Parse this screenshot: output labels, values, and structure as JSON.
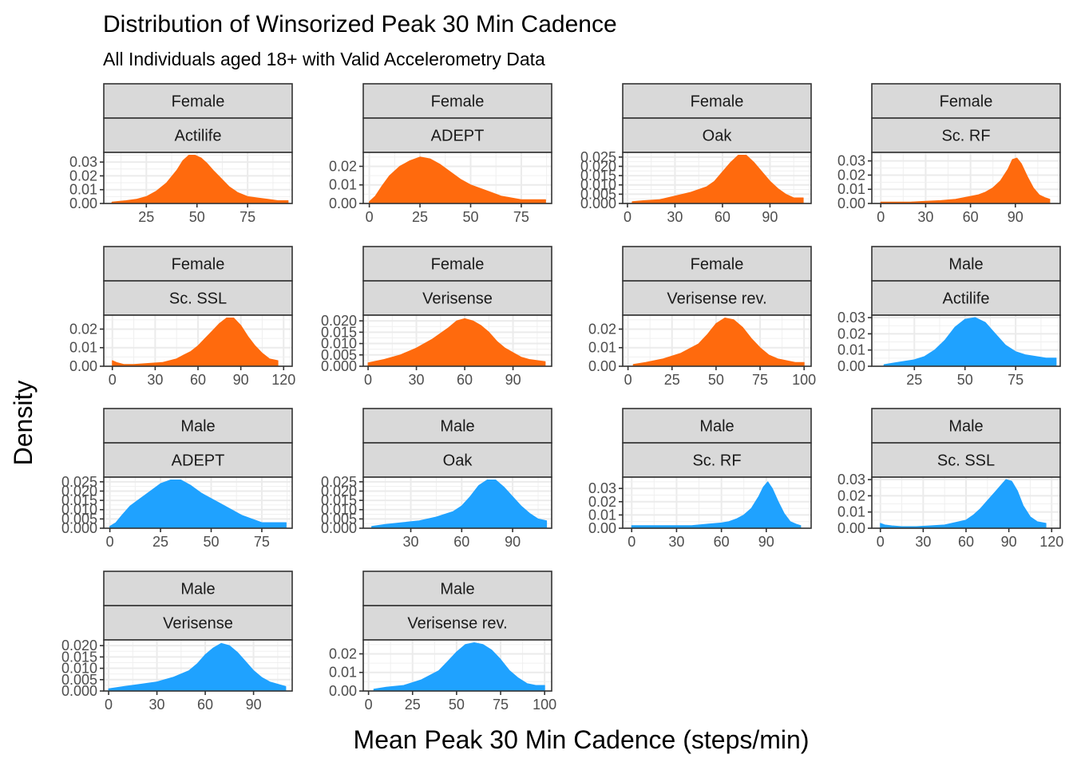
{
  "chart_data": {
    "type": "area",
    "title": "Distribution of Winsorized Peak 30 Min Cadence",
    "subtitle": "All Individuals aged 18+ with Valid Accelerometry Data",
    "xlabel": "Mean Peak 30 Min Cadence (steps/min)",
    "ylabel": "Density",
    "grid": true,
    "legend": "none",
    "colors": {
      "Female": "#FF6A0D",
      "Male": "#1FA2FF"
    },
    "panels": [
      {
        "sex": "Female",
        "method": "Actilife",
        "xlim": [
          4,
          97
        ],
        "ylim": [
          0,
          0.037
        ],
        "xticks": [
          25,
          50,
          75
        ],
        "yticks": [
          0.0,
          0.01,
          0.02,
          0.03
        ],
        "ytick_labels": [
          "0.00",
          "0.01",
          "0.02",
          "0.03"
        ],
        "x": [
          8,
          15,
          20,
          25,
          30,
          35,
          40,
          43,
          46,
          49,
          52,
          55,
          58,
          62,
          66,
          70,
          75,
          80,
          85,
          90,
          95
        ],
        "y": [
          0.001,
          0.002,
          0.003,
          0.005,
          0.009,
          0.015,
          0.024,
          0.031,
          0.035,
          0.035,
          0.033,
          0.029,
          0.024,
          0.018,
          0.012,
          0.008,
          0.005,
          0.004,
          0.003,
          0.002,
          0.002
        ]
      },
      {
        "sex": "Female",
        "method": "ADEPT",
        "xlim": [
          -3,
          90
        ],
        "ylim": [
          0,
          0.0275
        ],
        "xticks": [
          0,
          25,
          50,
          75
        ],
        "yticks": [
          0.0,
          0.01,
          0.02
        ],
        "ytick_labels": [
          "0.00",
          "0.01",
          "0.02"
        ],
        "x": [
          0,
          3,
          6,
          10,
          15,
          20,
          25,
          30,
          35,
          40,
          45,
          50,
          55,
          60,
          65,
          70,
          75,
          80,
          87
        ],
        "y": [
          0.001,
          0.004,
          0.009,
          0.015,
          0.02,
          0.023,
          0.025,
          0.024,
          0.021,
          0.017,
          0.013,
          0.01,
          0.008,
          0.006,
          0.004,
          0.003,
          0.002,
          0.002,
          0.002
        ]
      },
      {
        "sex": "Female",
        "method": "Oak",
        "xlim": [
          -3,
          116
        ],
        "ylim": [
          0,
          0.0275
        ],
        "xticks": [
          0,
          30,
          60,
          90
        ],
        "yticks": [
          0.0,
          0.005,
          0.01,
          0.015,
          0.02,
          0.025
        ],
        "ytick_labels": [
          "0.000",
          "0.005",
          "0.010",
          "0.015",
          "0.020",
          "0.025"
        ],
        "x": [
          3,
          10,
          20,
          30,
          40,
          50,
          55,
          60,
          65,
          70,
          75,
          80,
          85,
          90,
          95,
          100,
          105,
          111
        ],
        "y": [
          0.001,
          0.0015,
          0.002,
          0.004,
          0.006,
          0.009,
          0.012,
          0.017,
          0.022,
          0.026,
          0.026,
          0.022,
          0.017,
          0.012,
          0.008,
          0.005,
          0.003,
          0.003
        ]
      },
      {
        "sex": "Female",
        "method": "Sc. RF",
        "xlim": [
          -6,
          120
        ],
        "ylim": [
          0,
          0.036
        ],
        "xticks": [
          0,
          30,
          60,
          90
        ],
        "yticks": [
          0.0,
          0.01,
          0.02,
          0.03
        ],
        "ytick_labels": [
          "0.00",
          "0.01",
          "0.02",
          "0.03"
        ],
        "x": [
          0,
          10,
          20,
          30,
          40,
          50,
          60,
          65,
          70,
          75,
          80,
          85,
          88,
          91,
          94,
          98,
          102,
          106,
          110,
          113
        ],
        "y": [
          0.001,
          0.001,
          0.001,
          0.0015,
          0.002,
          0.003,
          0.005,
          0.006,
          0.008,
          0.011,
          0.016,
          0.024,
          0.031,
          0.032,
          0.028,
          0.019,
          0.011,
          0.006,
          0.004,
          0.003
        ]
      },
      {
        "sex": "Female",
        "method": "Sc. SSL",
        "xlim": [
          -6,
          126
        ],
        "ylim": [
          0,
          0.0275
        ],
        "xticks": [
          0,
          30,
          60,
          90,
          120
        ],
        "yticks": [
          0.0,
          0.01,
          0.02
        ],
        "ytick_labels": [
          "0.00",
          "0.01",
          "0.02"
        ],
        "x": [
          0,
          3,
          8,
          15,
          25,
          35,
          45,
          50,
          55,
          60,
          65,
          70,
          75,
          80,
          85,
          90,
          95,
          100,
          105,
          110,
          116
        ],
        "y": [
          0.003,
          0.002,
          0.001,
          0.001,
          0.0015,
          0.002,
          0.004,
          0.006,
          0.008,
          0.011,
          0.015,
          0.019,
          0.023,
          0.026,
          0.026,
          0.022,
          0.016,
          0.011,
          0.007,
          0.004,
          0.003
        ]
      },
      {
        "sex": "Female",
        "method": "Verisense",
        "xlim": [
          -3,
          114
        ],
        "ylim": [
          0,
          0.0225
        ],
        "xticks": [
          0,
          30,
          60,
          90
        ],
        "yticks": [
          0.0,
          0.005,
          0.01,
          0.015,
          0.02
        ],
        "ytick_labels": [
          "0.000",
          "0.005",
          "0.010",
          "0.015",
          "0.020"
        ],
        "x": [
          0,
          10,
          20,
          30,
          40,
          50,
          55,
          60,
          65,
          70,
          75,
          80,
          85,
          90,
          95,
          100,
          110
        ],
        "y": [
          0.0015,
          0.003,
          0.005,
          0.008,
          0.012,
          0.017,
          0.02,
          0.021,
          0.02,
          0.018,
          0.015,
          0.011,
          0.008,
          0.006,
          0.004,
          0.003,
          0.002
        ]
      },
      {
        "sex": "Female",
        "method": "Verisense rev.",
        "xlim": [
          -3,
          104
        ],
        "ylim": [
          0,
          0.0275
        ],
        "xticks": [
          0,
          25,
          50,
          75,
          100
        ],
        "yticks": [
          0.0,
          0.01,
          0.02
        ],
        "ytick_labels": [
          "0.00",
          "0.01",
          "0.02"
        ],
        "x": [
          3,
          10,
          20,
          30,
          40,
          45,
          50,
          55,
          60,
          65,
          70,
          75,
          80,
          85,
          90,
          95,
          100
        ],
        "y": [
          0.001,
          0.002,
          0.004,
          0.007,
          0.012,
          0.017,
          0.023,
          0.026,
          0.025,
          0.021,
          0.015,
          0.01,
          0.006,
          0.004,
          0.003,
          0.002,
          0.002
        ]
      },
      {
        "sex": "Male",
        "method": "Actilife",
        "xlim": [
          4,
          97
        ],
        "ylim": [
          0,
          0.0315
        ],
        "xticks": [
          25,
          50,
          75
        ],
        "yticks": [
          0.0,
          0.01,
          0.02,
          0.03
        ],
        "ytick_labels": [
          "0.00",
          "0.01",
          "0.02",
          "0.03"
        ],
        "x": [
          10,
          15,
          20,
          25,
          30,
          35,
          40,
          45,
          50,
          55,
          60,
          65,
          70,
          75,
          80,
          85,
          90,
          95
        ],
        "y": [
          0.001,
          0.002,
          0.003,
          0.004,
          0.006,
          0.01,
          0.016,
          0.024,
          0.029,
          0.03,
          0.027,
          0.02,
          0.013,
          0.009,
          0.007,
          0.006,
          0.005,
          0.005
        ]
      },
      {
        "sex": "Male",
        "method": "ADEPT",
        "xlim": [
          -3,
          90
        ],
        "ylim": [
          0,
          0.0275
        ],
        "xticks": [
          0,
          25,
          50,
          75
        ],
        "yticks": [
          0.0,
          0.005,
          0.01,
          0.015,
          0.02,
          0.025
        ],
        "ytick_labels": [
          "0.000",
          "0.005",
          "0.010",
          "0.015",
          "0.020",
          "0.025"
        ],
        "x": [
          0,
          3,
          6,
          10,
          15,
          20,
          25,
          30,
          35,
          40,
          45,
          50,
          55,
          60,
          65,
          70,
          75,
          80,
          87
        ],
        "y": [
          0.001,
          0.003,
          0.007,
          0.012,
          0.016,
          0.02,
          0.024,
          0.026,
          0.026,
          0.023,
          0.019,
          0.016,
          0.013,
          0.01,
          0.007,
          0.005,
          0.003,
          0.003,
          0.003
        ]
      },
      {
        "sex": "Male",
        "method": "Oak",
        "xlim": [
          2,
          113
        ],
        "ylim": [
          0,
          0.0275
        ],
        "xticks": [
          30,
          60,
          90
        ],
        "yticks": [
          0.0,
          0.005,
          0.01,
          0.015,
          0.02,
          0.025
        ],
        "ytick_labels": [
          "0.000",
          "0.005",
          "0.010",
          "0.015",
          "0.020",
          "0.025"
        ],
        "x": [
          7,
          15,
          25,
          35,
          45,
          55,
          60,
          65,
          70,
          75,
          80,
          85,
          90,
          95,
          100,
          105,
          110
        ],
        "y": [
          0.001,
          0.002,
          0.003,
          0.004,
          0.006,
          0.009,
          0.012,
          0.017,
          0.023,
          0.026,
          0.026,
          0.022,
          0.017,
          0.012,
          0.008,
          0.005,
          0.004
        ]
      },
      {
        "sex": "Male",
        "method": "Sc. RF",
        "xlim": [
          -6,
          120
        ],
        "ylim": [
          0,
          0.0385
        ],
        "xticks": [
          0,
          30,
          60,
          90
        ],
        "yticks": [
          0.0,
          0.01,
          0.02,
          0.03
        ],
        "ytick_labels": [
          "0.00",
          "0.01",
          "0.02",
          "0.03"
        ],
        "x": [
          0,
          10,
          20,
          30,
          40,
          50,
          60,
          65,
          70,
          75,
          80,
          85,
          88,
          91,
          94,
          98,
          102,
          106,
          110,
          113
        ],
        "y": [
          0.002,
          0.002,
          0.002,
          0.002,
          0.002,
          0.003,
          0.004,
          0.005,
          0.007,
          0.01,
          0.015,
          0.024,
          0.031,
          0.035,
          0.03,
          0.02,
          0.011,
          0.005,
          0.003,
          0.002
        ]
      },
      {
        "sex": "Male",
        "method": "Sc. SSL",
        "xlim": [
          -6,
          126
        ],
        "ylim": [
          0,
          0.0315
        ],
        "xticks": [
          0,
          30,
          60,
          90,
          120
        ],
        "yticks": [
          0.0,
          0.01,
          0.02,
          0.03
        ],
        "ytick_labels": [
          "0.00",
          "0.01",
          "0.02",
          "0.03"
        ],
        "x": [
          0,
          3,
          8,
          15,
          25,
          35,
          45,
          55,
          60,
          65,
          70,
          75,
          80,
          85,
          88,
          92,
          96,
          100,
          105,
          110,
          116
        ],
        "y": [
          0.003,
          0.002,
          0.0015,
          0.001,
          0.001,
          0.0015,
          0.002,
          0.004,
          0.005,
          0.008,
          0.012,
          0.017,
          0.022,
          0.027,
          0.03,
          0.029,
          0.023,
          0.014,
          0.007,
          0.004,
          0.003
        ]
      },
      {
        "sex": "Male",
        "method": "Verisense",
        "xlim": [
          -3,
          114
        ],
        "ylim": [
          0,
          0.0225
        ],
        "xticks": [
          0,
          30,
          60,
          90
        ],
        "yticks": [
          0.0,
          0.005,
          0.01,
          0.015,
          0.02
        ],
        "ytick_labels": [
          "0.000",
          "0.005",
          "0.010",
          "0.015",
          "0.020"
        ],
        "x": [
          0,
          10,
          20,
          30,
          40,
          50,
          55,
          60,
          65,
          70,
          75,
          80,
          85,
          90,
          95,
          100,
          105,
          110
        ],
        "y": [
          0.001,
          0.002,
          0.003,
          0.004,
          0.006,
          0.009,
          0.012,
          0.016,
          0.019,
          0.021,
          0.02,
          0.017,
          0.013,
          0.009,
          0.006,
          0.004,
          0.003,
          0.002
        ]
      },
      {
        "sex": "Male",
        "method": "Verisense rev.",
        "xlim": [
          -3,
          104
        ],
        "ylim": [
          0,
          0.0275
        ],
        "xticks": [
          0,
          25,
          50,
          75,
          100
        ],
        "yticks": [
          0.0,
          0.01,
          0.02
        ],
        "ytick_labels": [
          "0.00",
          "0.01",
          "0.02"
        ],
        "x": [
          3,
          10,
          20,
          30,
          40,
          45,
          50,
          55,
          60,
          65,
          70,
          75,
          80,
          85,
          90,
          95,
          100
        ],
        "y": [
          0.001,
          0.002,
          0.003,
          0.006,
          0.011,
          0.016,
          0.021,
          0.025,
          0.026,
          0.025,
          0.022,
          0.017,
          0.011,
          0.007,
          0.004,
          0.003,
          0.003
        ]
      }
    ]
  }
}
